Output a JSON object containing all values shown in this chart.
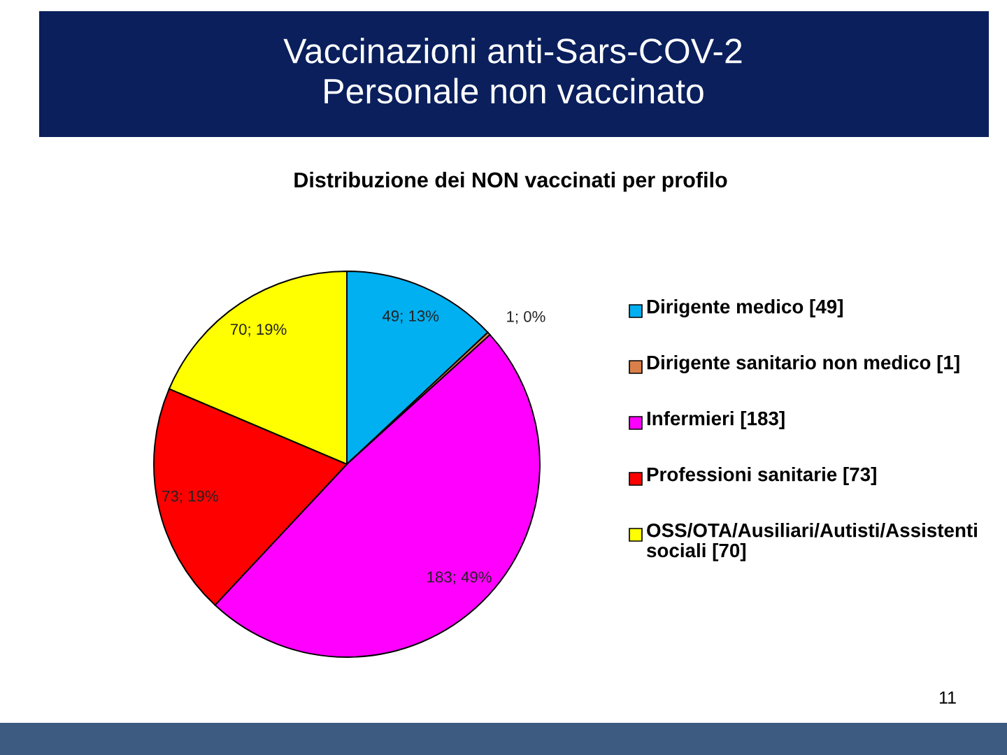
{
  "chart_data": {
    "type": "pie",
    "title": "Vaccinazioni anti-Sars-COV-2\nPersonale non vaccinato",
    "subtitle": "Distribuzione dei NON vaccinati per profilo",
    "categories": [
      "Dirigente medico [49]",
      "Dirigente sanitario non medico [1]",
      "Infermieri [183]",
      "Professioni sanitarie [73]",
      "OSS/OTA/Ausiliari/Autisti/Assistenti sociali [70]"
    ],
    "values": [
      49,
      1,
      183,
      73,
      70
    ],
    "colors": [
      "#00b0f0",
      "#d9804a",
      "#ff00ff",
      "#ff0000",
      "#ffff00"
    ],
    "value_labels": [
      "49; 13%",
      "1; 0%",
      "183; 49%",
      "73; 19%",
      "70; 19%"
    ],
    "legend": "right",
    "annotations": [
      "11"
    ]
  }
}
